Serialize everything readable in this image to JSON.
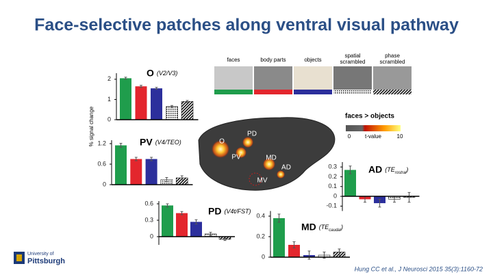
{
  "slide_title": "Face-selective patches along ventral visual pathway",
  "citation": "Hung CC et al.,  J Neurosci 2015 35(3):1160-72",
  "logo": {
    "line1": "University of",
    "line2": "Pittsburgh"
  },
  "y_label": "% signal change",
  "stimuli": [
    {
      "label": "faces",
      "color": "#1f9d4c"
    },
    {
      "label": "body parts",
      "color": "#e3262d"
    },
    {
      "label": "objects",
      "color": "#2c2f9c"
    },
    {
      "label": "spatial scrambled",
      "pattern": "dots"
    },
    {
      "label": "phase scrambled",
      "pattern": "hatch"
    }
  ],
  "colorbar": {
    "title": "faces > objects",
    "min_label": "0",
    "mid_label": "t-value",
    "max_label": "10"
  },
  "brain_labels": [
    "O",
    "PD",
    "PV",
    "MD",
    "AD",
    "MV"
  ],
  "chart_data": [
    {
      "type": "bar",
      "title": "O",
      "area": "(V2/V3)",
      "values": [
        2.05,
        1.65,
        1.55,
        0.65,
        0.9
      ],
      "errors": [
        0.05,
        0.05,
        0.05,
        0.05,
        0.05
      ],
      "ylim": [
        0,
        2.3
      ],
      "yticks": [
        0,
        1,
        2
      ]
    },
    {
      "type": "bar",
      "title": "PV",
      "area": "(V4/TEO)",
      "values": [
        1.15,
        0.75,
        0.75,
        0.15,
        0.2
      ],
      "errors": [
        0.06,
        0.05,
        0.05,
        0.06,
        0.06
      ],
      "ylim": [
        0,
        1.3
      ],
      "yticks": [
        0,
        0.6,
        1.2
      ]
    },
    {
      "type": "bar",
      "title": "PD",
      "area": "(V4t/FST)",
      "values": [
        0.57,
        0.43,
        0.27,
        0.05,
        -0.05
      ],
      "errors": [
        0.03,
        0.03,
        0.04,
        0.03,
        0.02
      ],
      "ylim": [
        -0.15,
        0.65
      ],
      "yticks": [
        0,
        0.3,
        0.6
      ]
    },
    {
      "type": "bar",
      "title": "AD",
      "area": "(TE",
      "area_sub": "rostral",
      "area_end": ")",
      "values": [
        0.27,
        -0.03,
        -0.07,
        -0.03,
        -0.01
      ],
      "errors": [
        0.04,
        0.03,
        0.04,
        0.03,
        0.05
      ],
      "ylim": [
        -0.15,
        0.35
      ],
      "yticks": [
        -0.1,
        0,
        0.1,
        0.2,
        0.3
      ]
    },
    {
      "type": "bar",
      "title": "MD",
      "area": "(TE",
      "area_sub": "caudal",
      "area_end": ")",
      "values": [
        0.38,
        0.12,
        0.02,
        0.02,
        0.05
      ],
      "errors": [
        0.04,
        0.03,
        0.04,
        0.03,
        0.03
      ],
      "ylim": [
        0,
        0.45
      ],
      "yticks": [
        0,
        0.2,
        0.4
      ]
    }
  ]
}
